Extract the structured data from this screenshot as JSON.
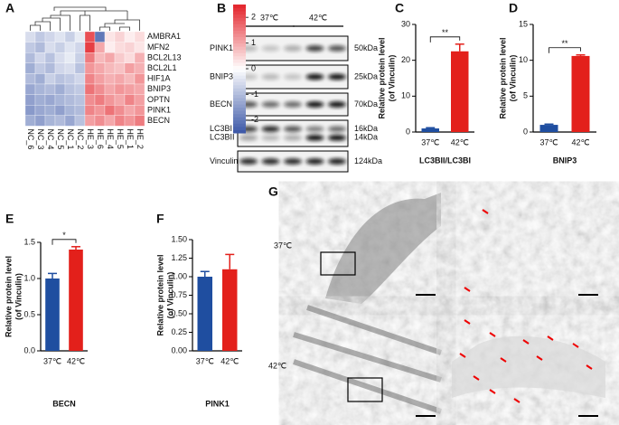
{
  "chart_data": [
    {
      "type": "heatmap",
      "panel_label": "A",
      "rows": [
        "AMBRA1",
        "MFN2",
        "BCL2L13",
        "BCL2L1",
        "HIF1A",
        "BNIP3",
        "OPTN",
        "PINK1",
        "BECN"
      ],
      "columns": [
        "NC_6",
        "NC_3",
        "NC_4",
        "NC_5",
        "NC_1",
        "NC_2",
        "HE_3",
        "HE_6",
        "HE_4",
        "HE_5",
        "HE_1",
        "HE_2"
      ],
      "values": [
        [
          -0.5,
          -0.8,
          -0.6,
          -0.4,
          -0.7,
          -0.3,
          2.0,
          -2.0,
          0.3,
          0.5,
          0.2,
          0.4
        ],
        [
          -0.8,
          -1.0,
          -0.5,
          -0.7,
          -0.4,
          -0.6,
          2.2,
          1.0,
          0.2,
          0.4,
          0.5,
          0.3
        ],
        [
          -1.0,
          -0.6,
          -0.9,
          -0.5,
          -0.3,
          -0.7,
          1.5,
          0.8,
          1.0,
          0.6,
          0.4,
          0.9
        ],
        [
          -1.2,
          -0.8,
          -1.0,
          -0.6,
          -0.5,
          -0.9,
          1.2,
          1.0,
          0.8,
          0.7,
          1.1,
          0.9
        ],
        [
          -1.0,
          -1.2,
          -0.7,
          -0.9,
          -0.8,
          -0.6,
          1.4,
          1.1,
          0.9,
          1.0,
          0.8,
          1.2
        ],
        [
          -1.3,
          -1.1,
          -1.0,
          -1.2,
          -0.9,
          -0.8,
          1.6,
          1.3,
          1.0,
          1.2,
          1.1,
          1.0
        ],
        [
          -1.4,
          -1.2,
          -1.3,
          -1.1,
          -1.0,
          -0.9,
          1.3,
          1.5,
          1.2,
          1.0,
          1.4,
          1.1
        ],
        [
          -1.5,
          -1.3,
          -1.2,
          -1.4,
          -1.1,
          -1.0,
          1.4,
          1.2,
          1.6,
          1.3,
          1.0,
          1.2
        ],
        [
          -1.2,
          -1.4,
          -1.1,
          -1.0,
          -1.3,
          -0.9,
          1.1,
          1.3,
          1.0,
          1.4,
          1.2,
          1.5
        ]
      ],
      "zlim": [
        -2.5,
        2.5
      ],
      "zticks": [
        2,
        1,
        0,
        -1,
        -2
      ],
      "colors": [
        "#3a56a6",
        "#ffffff",
        "#e3242b"
      ]
    },
    {
      "type": "bar",
      "panel_label": "C",
      "xlabel": "LC3BII/LC3BI",
      "ylabel": [
        "Relative protein level",
        "(of Vinculin)"
      ],
      "categories": [
        "37℃",
        "42℃"
      ],
      "values": [
        1,
        22.5
      ],
      "errors": [
        0.2,
        2
      ],
      "colors": [
        "#1f4ea0",
        "#e3201b"
      ],
      "ylim": [
        0,
        30
      ],
      "yticks": [
        0,
        10,
        20,
        30
      ],
      "significance": "**"
    },
    {
      "type": "bar",
      "panel_label": "D",
      "xlabel": "BNIP3",
      "ylabel": [
        "Relative protein level",
        "(of Vinculin)"
      ],
      "categories": [
        "37℃",
        "42℃"
      ],
      "values": [
        1,
        10.6
      ],
      "errors": [
        0.1,
        0.15
      ],
      "colors": [
        "#1f4ea0",
        "#e3201b"
      ],
      "ylim": [
        0,
        15
      ],
      "yticks": [
        0,
        5,
        10,
        15
      ],
      "significance": "**"
    },
    {
      "type": "bar",
      "panel_label": "E",
      "xlabel": "BECN",
      "ylabel": [
        "Relative protein level",
        "(of Vinculin)"
      ],
      "categories": [
        "37℃",
        "42℃"
      ],
      "values": [
        1.0,
        1.4
      ],
      "errors": [
        0.07,
        0.04
      ],
      "colors": [
        "#1f4ea0",
        "#e3201b"
      ],
      "ylim": [
        0,
        1.5
      ],
      "yticks": [
        {
          "value": 0,
          "label": "0.0"
        },
        {
          "value": 0.5,
          "label": "0.5"
        },
        {
          "value": 1,
          "label": "1.0"
        },
        {
          "value": 1.5,
          "label": "1.5"
        }
      ],
      "significance": "*"
    },
    {
      "type": "bar",
      "panel_label": "F",
      "xlabel": "PINK1",
      "ylabel": [
        "Relative protein level",
        "(of Vinculin)"
      ],
      "categories": [
        "37℃",
        "42℃"
      ],
      "values": [
        1.0,
        1.1
      ],
      "errors": [
        0.07,
        0.2
      ],
      "colors": [
        "#1f4ea0",
        "#e3201b"
      ],
      "ylim": [
        0,
        1.5
      ],
      "yticks": [
        {
          "value": 0,
          "label": "0.00"
        },
        {
          "value": 0.25,
          "label": "0.25"
        },
        {
          "value": 0.5,
          "label": "0.50"
        },
        {
          "value": 0.75,
          "label": "0.75"
        },
        {
          "value": 1,
          "label": "1.00"
        },
        {
          "value": 1.25,
          "label": "1.25"
        },
        {
          "value": 1.5,
          "label": "1.50"
        }
      ]
    }
  ],
  "blot": {
    "panel_label": "B",
    "groups": [
      "37℃",
      "42℃"
    ],
    "rows": [
      {
        "name": "PINK1",
        "size": "50kDa"
      },
      {
        "name": "BNIP3",
        "size": "25kDa"
      },
      {
        "name": "BECN",
        "size": "70kDa"
      },
      {
        "name": "LC3BI",
        "size": "16kDa"
      },
      {
        "name": "LC3BII",
        "size": "14kDa"
      },
      {
        "name": "Vinculin",
        "size": "124kDa"
      }
    ]
  },
  "micrograph": {
    "panel_label": "G",
    "conditions": [
      "37℃",
      "42℃"
    ]
  }
}
